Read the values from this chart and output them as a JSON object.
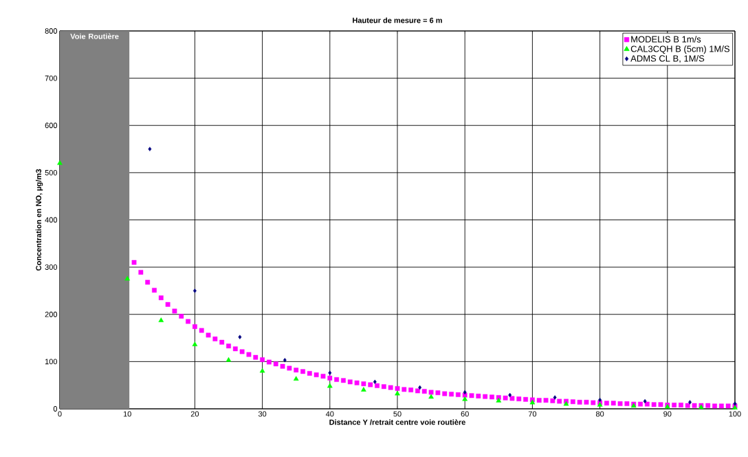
{
  "chart_data": {
    "type": "scatter",
    "title": "Hauteur de mesure = 6 m",
    "xlabel": "Distance Y /retrait centre voie routière",
    "ylabel": "Concentration en NO, µg/m3",
    "xlim": [
      0,
      100
    ],
    "xticks": [
      0,
      10,
      20,
      30,
      40,
      50,
      60,
      70,
      80,
      90,
      100
    ],
    "ylim": [
      0,
      800
    ],
    "yticks": [
      0,
      100,
      200,
      300,
      400,
      500,
      600,
      700,
      800
    ],
    "grid": true,
    "legend": "top right",
    "bands": [
      {
        "axis": "x",
        "from": 0,
        "to": 10.3,
        "label": "Voie Routière",
        "color": "#808080"
      }
    ],
    "series": [
      {
        "name": "MODELIS B 1m/s",
        "color": "#ff00ff",
        "marker": "square",
        "x": [
          11,
          12,
          13,
          14,
          15,
          16,
          17,
          18,
          19,
          20,
          21,
          22,
          23,
          24,
          25,
          26,
          27,
          28,
          29,
          30,
          31,
          32,
          33,
          34,
          35,
          36,
          37,
          38,
          39,
          40,
          41,
          42,
          43,
          44,
          45,
          46,
          47,
          48,
          49,
          50,
          51,
          52,
          53,
          54,
          55,
          56,
          57,
          58,
          59,
          60,
          61,
          62,
          63,
          64,
          65,
          66,
          67,
          68,
          69,
          70,
          71,
          72,
          73,
          74,
          75,
          76,
          77,
          78,
          79,
          80,
          81,
          82,
          83,
          84,
          85,
          86,
          87,
          88,
          89,
          90,
          91,
          92,
          93,
          94,
          95,
          96,
          97,
          98,
          99,
          100
        ],
        "values": [
          310,
          289,
          268,
          251,
          235,
          221,
          207,
          196,
          185,
          174,
          166,
          156,
          148,
          141,
          133,
          127,
          121,
          115,
          109,
          104,
          99,
          95,
          90,
          86,
          82,
          79,
          75,
          72,
          69,
          65,
          62,
          60,
          57,
          55,
          53,
          51,
          49,
          47,
          45,
          43,
          41,
          40,
          38,
          37,
          35,
          34,
          32,
          31,
          30,
          29,
          28,
          27,
          26,
          25,
          24,
          23,
          22,
          21,
          20,
          19,
          18,
          18,
          17,
          16,
          16,
          15,
          14,
          14,
          13,
          13,
          12,
          12,
          11,
          11,
          10,
          10,
          10,
          9,
          9,
          8,
          8,
          8,
          7,
          7,
          7,
          7,
          6,
          6,
          6,
          6
        ]
      },
      {
        "name": "CAL3CQH B (5cm) 1M/S",
        "color": "#00ff00",
        "marker": "triangle",
        "x": [
          0,
          10,
          15,
          20,
          25,
          30,
          35,
          40,
          45,
          50,
          55,
          60,
          65,
          70,
          75,
          80,
          85,
          90,
          95,
          100
        ],
        "values": [
          520,
          275,
          187,
          136,
          103,
          80,
          63,
          48,
          40,
          32,
          25,
          20,
          17,
          13,
          10,
          8,
          6,
          4,
          3,
          2
        ]
      },
      {
        "name": "ADMS CL B, 1M/S",
        "color": "#000080",
        "marker": "diamond",
        "x": [
          13.33,
          20,
          26.67,
          33.33,
          40,
          46.67,
          53.33,
          60,
          66.67,
          73.33,
          80,
          86.67,
          93.33,
          100
        ],
        "values": [
          550,
          250,
          152,
          103,
          76,
          57,
          45,
          35,
          29,
          24,
          19,
          16,
          14,
          11
        ]
      }
    ]
  }
}
